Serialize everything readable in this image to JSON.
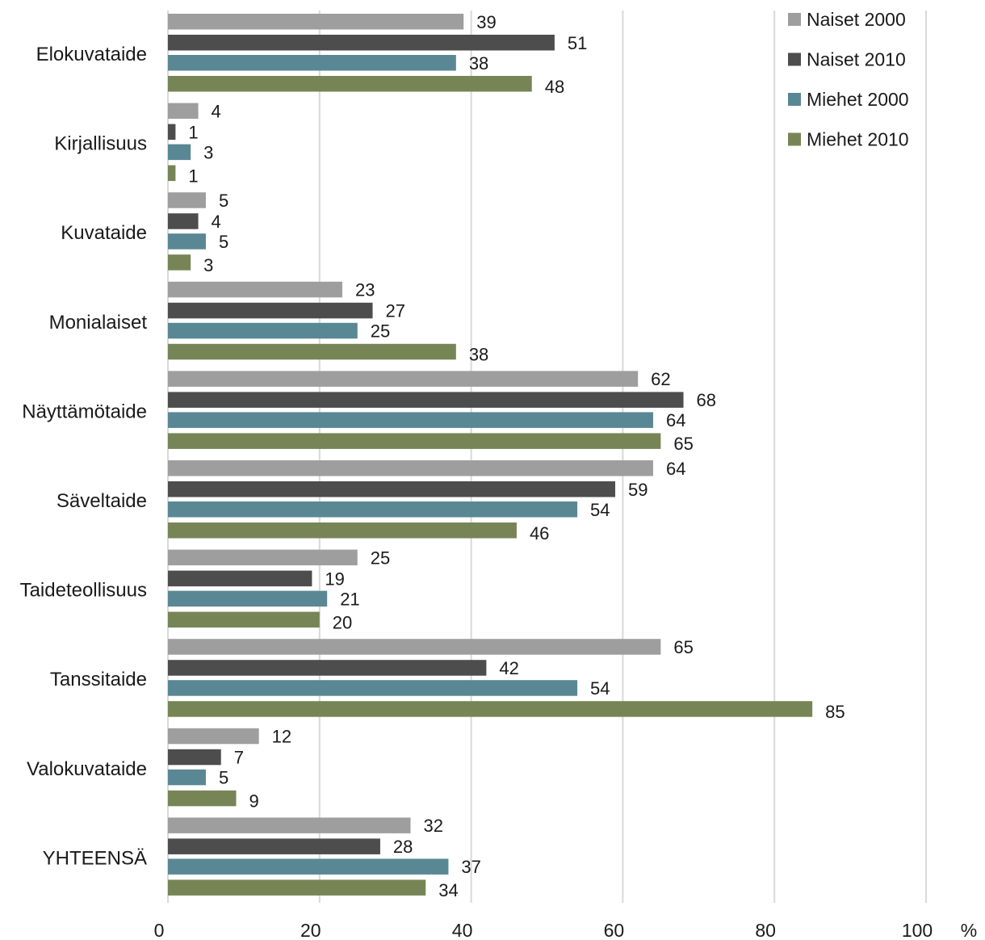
{
  "chart_data": {
    "type": "bar",
    "orientation": "horizontal",
    "categories": [
      "Elokuvataide",
      "Kirjallisuus",
      "Kuvataide",
      "Monialaiset",
      "Näyttämötaide",
      "Säveltaide",
      "Taideteollisuus",
      "Tanssitaide",
      "Valokuvataide",
      "YHTEENSÄ"
    ],
    "series": [
      {
        "name": "Naiset 2000",
        "color": "#9e9e9e",
        "values": [
          39,
          4,
          5,
          23,
          62,
          64,
          25,
          65,
          12,
          32
        ]
      },
      {
        "name": "Naiset 2010",
        "color": "#4d4d4d",
        "values": [
          51,
          1,
          4,
          27,
          68,
          59,
          19,
          42,
          7,
          28
        ]
      },
      {
        "name": "Miehet 2000",
        "color": "#5a8794",
        "values": [
          38,
          3,
          5,
          25,
          64,
          54,
          21,
          54,
          5,
          37
        ]
      },
      {
        "name": "Miehet 2010",
        "color": "#778556",
        "values": [
          48,
          1,
          3,
          38,
          65,
          46,
          20,
          85,
          9,
          34
        ]
      }
    ],
    "xticks": [
      "0",
      "20",
      "40",
      "60",
      "80",
      "100"
    ],
    "xunit": "%",
    "xlim": [
      0,
      100
    ],
    "grid": "vertical",
    "legend": "top-right"
  }
}
